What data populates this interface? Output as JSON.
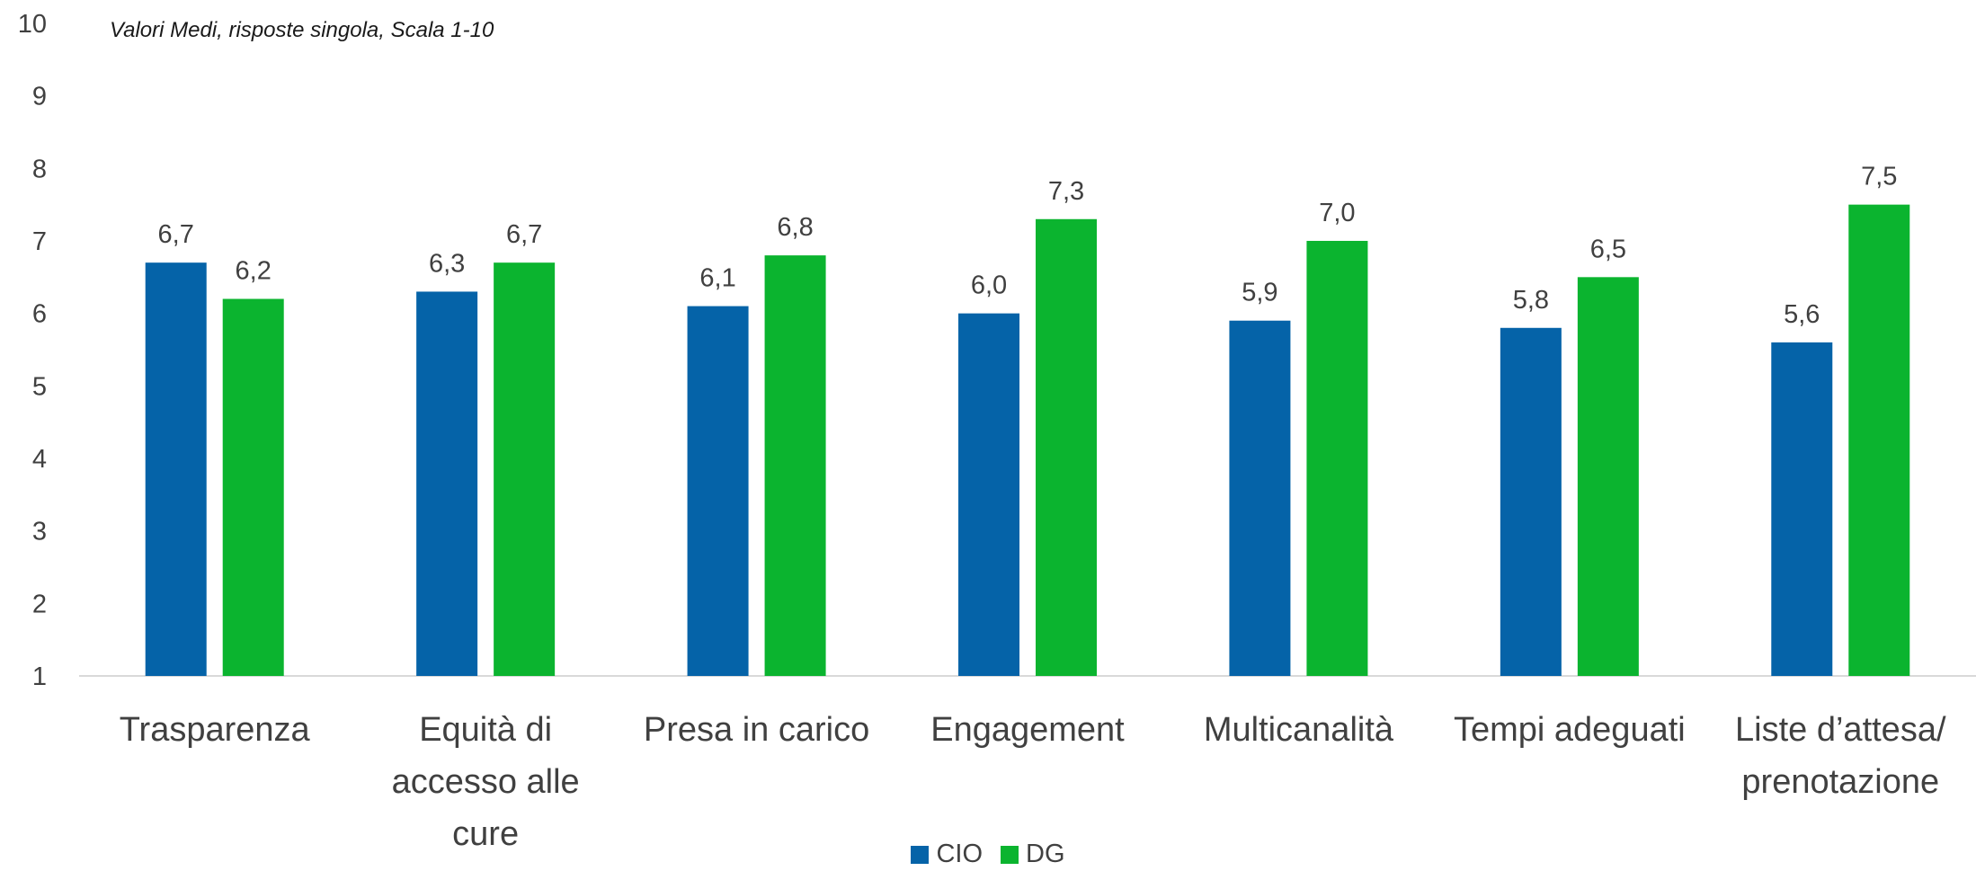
{
  "chart_data": {
    "type": "bar",
    "title": "",
    "subtitle": "Valori Medi, risposte singola, Scala 1-10",
    "xlabel": "",
    "ylabel": "",
    "ylim": [
      1,
      10
    ],
    "yticks": [
      "1",
      "2",
      "3",
      "4",
      "5",
      "6",
      "7",
      "8",
      "9",
      "10"
    ],
    "grid": false,
    "legend_position": "bottom",
    "categories": [
      [
        "Trasparenza"
      ],
      [
        "Equità di",
        "accesso alle",
        "cure"
      ],
      [
        "Presa in carico"
      ],
      [
        "Engagement"
      ],
      [
        "Multicanalità"
      ],
      [
        "Tempi adeguati"
      ],
      [
        "Liste d’attesa/",
        "prenotazione"
      ]
    ],
    "series": [
      {
        "name": "CIO",
        "color": "#0563A8",
        "values": [
          6.7,
          6.3,
          6.1,
          6.0,
          5.9,
          5.8,
          5.6
        ],
        "labels": [
          "6,7",
          "6,3",
          "6,1",
          "6,0",
          "5,9",
          "5,8",
          "5,6"
        ]
      },
      {
        "name": "DG",
        "color": "#0BB42F",
        "values": [
          6.2,
          6.7,
          6.8,
          7.3,
          7.0,
          6.5,
          7.5
        ],
        "labels": [
          "6,2",
          "6,7",
          "6,8",
          "7,3",
          "7,0",
          "6,5",
          "7,5"
        ]
      }
    ]
  }
}
